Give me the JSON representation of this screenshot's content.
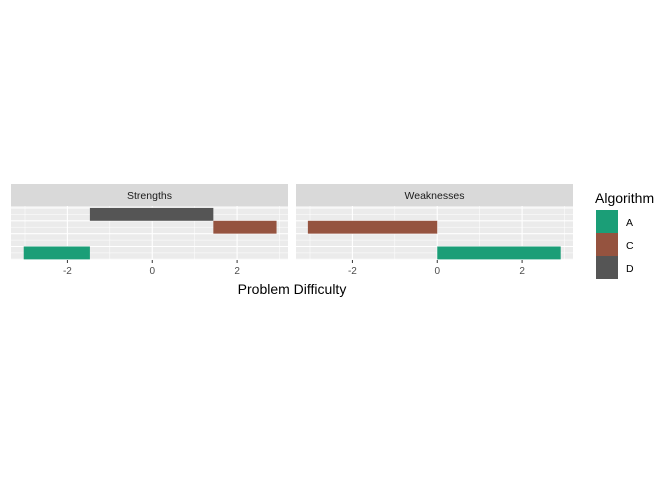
{
  "chart_data": {
    "type": "bar",
    "orientation": "horizontal-rect",
    "xlabel": "Problem Difficulty",
    "ylabel": "",
    "xlim": [
      -3.33,
      3.2
    ],
    "ylim": [
      -0.05,
      4.15
    ],
    "x_ticks": [
      -2,
      0,
      2
    ],
    "x_tick_labels": [
      "-2",
      "0",
      "2"
    ],
    "grid": true,
    "legend": {
      "title": "Algorithm",
      "position": "right",
      "entries": [
        {
          "label": "A",
          "color": "#1B9E77"
        },
        {
          "label": "C",
          "color": "#95533F"
        },
        {
          "label": "D",
          "color": "#555555"
        }
      ]
    },
    "panels": [
      {
        "title": "Strengths",
        "bars": [
          {
            "algorithm": "D",
            "xmin": -1.47,
            "xmax": 1.44,
            "ymin": 3,
            "ymax": 4
          },
          {
            "algorithm": "C",
            "xmin": 1.44,
            "xmax": 2.93,
            "ymin": 2,
            "ymax": 3
          },
          {
            "algorithm": "A",
            "xmin": -3.03,
            "xmax": -1.47,
            "ymin": 0,
            "ymax": 1
          }
        ]
      },
      {
        "title": "Weaknesses",
        "bars": [
          {
            "algorithm": "C",
            "xmin": -3.05,
            "xmax": 0,
            "ymin": 2,
            "ymax": 3
          },
          {
            "algorithm": "A",
            "xmin": 0,
            "xmax": 2.91,
            "ymin": 0,
            "ymax": 1
          }
        ]
      }
    ]
  }
}
